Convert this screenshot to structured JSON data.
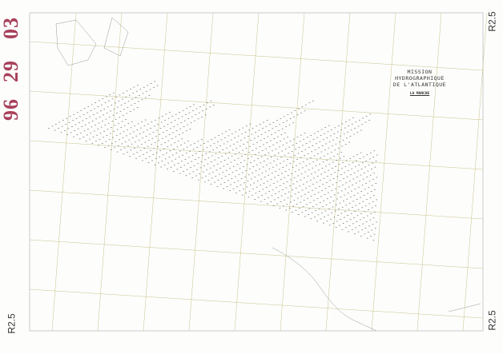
{
  "stamp": {
    "part1": "96",
    "part2": "29",
    "part3": "03"
  },
  "corner_labels": {
    "top_right": "R2.5",
    "bottom_left": "R2.5",
    "bottom_right": "R2.5"
  },
  "cartouche": {
    "title_line1": "MISSION HYDROGRAPHIQUE",
    "title_line2": "DE L'ATLANTIQUE",
    "region": "LA MANCHE"
  },
  "colors": {
    "stamp": "#a8405a",
    "grid": "#c9c38a",
    "ink": "#333333"
  }
}
